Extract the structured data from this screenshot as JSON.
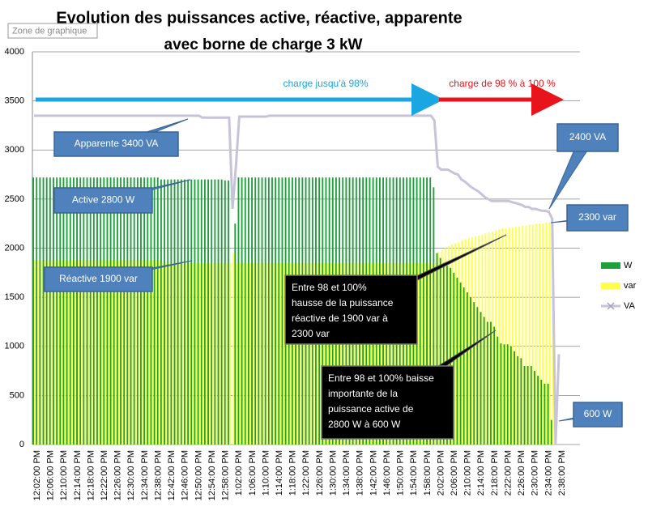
{
  "chart_data": {
    "type": "bar_line",
    "title": "Evolution des puissances active, réactive, apparente",
    "subtitle": "avec borne  de charge 3 kW",
    "tooltip": "Zone de graphique",
    "categories": [
      "12:02:00 PM",
      null,
      null,
      null,
      "12:06:00 PM",
      null,
      null,
      null,
      "12:10:00 PM",
      null,
      null,
      null,
      "12:14:00 PM",
      null,
      null,
      null,
      "12:18:00 PM",
      null,
      null,
      null,
      "12:22:00 PM",
      null,
      null,
      null,
      "12:26:00 PM",
      null,
      null,
      null,
      "12:30:00 PM",
      null,
      null,
      null,
      "12:34:00 PM",
      null,
      null,
      null,
      "12:38:00 PM",
      null,
      null,
      null,
      "12:42:00 PM",
      null,
      null,
      null,
      "12:46:00 PM",
      null,
      null,
      null,
      "12:50:00 PM",
      null,
      null,
      null,
      "12:54:00 PM",
      null,
      null,
      null,
      "12:58:00 PM",
      null,
      null,
      null,
      "1:02:00 PM",
      null,
      null,
      null,
      "1:06:00 PM",
      null,
      null,
      null,
      "1:10:00 PM",
      null,
      null,
      null,
      "1:14:00 PM",
      null,
      null,
      null,
      "1:18:00 PM",
      null,
      null,
      null,
      "1:22:00 PM",
      null,
      null,
      null,
      "1:26:00 PM",
      null,
      null,
      null,
      "1:30:00 PM",
      null,
      null,
      null,
      "1:34:00 PM",
      null,
      null,
      null,
      "1:38:00 PM",
      null,
      null,
      null,
      "1:42:00 PM",
      null,
      null,
      null,
      "1:46:00 PM",
      null,
      null,
      null,
      "1:50:00 PM",
      null,
      null,
      null,
      "1:54:00 PM",
      null,
      null,
      null,
      "1:58:00 PM",
      null,
      null,
      null,
      "2:02:00 PM",
      null,
      null,
      null,
      "2:06:00 PM",
      null,
      null,
      null,
      "2:10:00 PM",
      null,
      null,
      null,
      "2:14:00 PM",
      null,
      null,
      null,
      "2:18:00 PM",
      null,
      null,
      null,
      "2:22:00 PM",
      null,
      null,
      null,
      "2:26:00 PM",
      null,
      null,
      null,
      "2:30:00 PM",
      null,
      null,
      null,
      "2:34:00 PM",
      null,
      null,
      null,
      "2:38:00 PM"
    ],
    "series": [
      {
        "name": "W",
        "kind": "bar",
        "color": "#1f9e3c",
        "values": [
          2720,
          2720,
          2720,
          2720,
          2720,
          2720,
          2720,
          2720,
          2720,
          2720,
          2720,
          2720,
          2720,
          2720,
          2720,
          2720,
          2720,
          2720,
          2720,
          2720,
          2720,
          2720,
          2720,
          2720,
          2720,
          2720,
          2720,
          2720,
          2720,
          2720,
          2720,
          2720,
          2720,
          2720,
          2720,
          2720,
          2720,
          2720,
          2700,
          2700,
          2700,
          2700,
          2700,
          2700,
          2700,
          2700,
          2700,
          2700,
          2700,
          2700,
          2700,
          2700,
          2700,
          2700,
          2700,
          2700,
          2700,
          2690,
          2690,
          0,
          2250,
          2720,
          2720,
          2720,
          2720,
          2720,
          2720,
          2720,
          2720,
          2720,
          2720,
          2720,
          2720,
          2720,
          2720,
          2720,
          2720,
          2720,
          2720,
          2720,
          2720,
          2720,
          2720,
          2720,
          2720,
          2720,
          2720,
          2720,
          2720,
          2720,
          2720,
          2720,
          2720,
          2720,
          2720,
          2720,
          2720,
          2720,
          2720,
          2720,
          2720,
          2720,
          2720,
          2720,
          2720,
          2720,
          2720,
          2720,
          2720,
          2720,
          2720,
          2720,
          2720,
          2720,
          2720,
          2720,
          2720,
          2720,
          2720,
          2620,
          1950,
          1900,
          1850,
          1820,
          1800,
          1750,
          1700,
          1650,
          1600,
          1550,
          1500,
          1450,
          1400,
          1350,
          1300,
          1250,
          1250,
          1200,
          1100,
          1030,
          1020,
          1020,
          1000,
          950,
          900,
          880,
          800,
          800,
          800,
          750,
          700,
          660,
          620,
          620,
          250,
          0,
          0
        ]
      },
      {
        "name": "var",
        "kind": "bar",
        "color": "#ffff4a",
        "values": [
          1880,
          1880,
          1880,
          1880,
          1880,
          1880,
          1880,
          1880,
          1880,
          1880,
          1880,
          1880,
          1880,
          1880,
          1880,
          1880,
          1880,
          1880,
          1880,
          1880,
          1880,
          1880,
          1880,
          1880,
          1880,
          1880,
          1880,
          1880,
          1880,
          1880,
          1880,
          1880,
          1880,
          1880,
          1880,
          1880,
          1880,
          1880,
          1850,
          1850,
          1850,
          1850,
          1850,
          1850,
          1850,
          1850,
          1850,
          1850,
          1850,
          1850,
          1850,
          1850,
          1850,
          1850,
          1850,
          1850,
          1850,
          1850,
          1850,
          1950,
          1850,
          1850,
          1850,
          1850,
          1850,
          1850,
          1850,
          1850,
          1850,
          1850,
          1850,
          1850,
          1850,
          1850,
          1850,
          1850,
          1850,
          1850,
          1850,
          1850,
          1850,
          1850,
          1850,
          1850,
          1850,
          1850,
          1850,
          1850,
          1850,
          1850,
          1850,
          1850,
          1850,
          1850,
          1850,
          1850,
          1850,
          1850,
          1850,
          1850,
          1850,
          1850,
          1850,
          1850,
          1850,
          1850,
          1850,
          1850,
          1850,
          1850,
          1850,
          1850,
          1850,
          1850,
          1850,
          1850,
          1850,
          1850,
          1850,
          1850,
          1960,
          1980,
          2000,
          2020,
          2040,
          2050,
          2060,
          2080,
          2090,
          2100,
          2110,
          2120,
          2130,
          2140,
          2150,
          2160,
          2170,
          2180,
          2190,
          2200,
          2200,
          2210,
          2210,
          2220,
          2220,
          2230,
          2230,
          2240,
          2240,
          2250,
          2250,
          2250,
          2260,
          2260,
          2260,
          0,
          0
        ]
      },
      {
        "name": "VA",
        "kind": "line",
        "color": "#c9c3da",
        "values": [
          3350,
          3350,
          3350,
          3350,
          3350,
          3350,
          3350,
          3350,
          3350,
          3350,
          3350,
          3350,
          3350,
          3350,
          3350,
          3350,
          3350,
          3350,
          3350,
          3350,
          3350,
          3350,
          3350,
          3350,
          3350,
          3350,
          3350,
          3350,
          3350,
          3350,
          3350,
          3350,
          3350,
          3350,
          3350,
          3350,
          3350,
          3350,
          3350,
          3350,
          3350,
          3350,
          3350,
          3350,
          3350,
          3350,
          3350,
          3350,
          3350,
          3350,
          3330,
          3330,
          3330,
          3330,
          3330,
          3330,
          3330,
          3330,
          3330,
          2400,
          2830,
          3340,
          3340,
          3340,
          3340,
          3340,
          3340,
          3340,
          3340,
          3340,
          3350,
          3350,
          3350,
          3350,
          3350,
          3350,
          3350,
          3350,
          3350,
          3350,
          3350,
          3350,
          3350,
          3350,
          3350,
          3350,
          3350,
          3350,
          3350,
          3350,
          3350,
          3350,
          3350,
          3350,
          3350,
          3350,
          3350,
          3350,
          3350,
          3350,
          3350,
          3350,
          3350,
          3350,
          3350,
          3350,
          3350,
          3350,
          3350,
          3350,
          3350,
          3350,
          3350,
          3350,
          3350,
          3350,
          3350,
          3350,
          3350,
          3300,
          2830,
          2800,
          2800,
          2800,
          2780,
          2760,
          2750,
          2700,
          2680,
          2650,
          2620,
          2600,
          2580,
          2550,
          2520,
          2500,
          2480,
          2480,
          2480,
          2480,
          2480,
          2480,
          2470,
          2460,
          2450,
          2440,
          2420,
          2420,
          2400,
          2400,
          2390,
          2380,
          2380,
          2370,
          2300,
          0,
          920
        ]
      }
    ],
    "ylim": [
      0,
      4000
    ],
    "yticks": [
      0,
      500,
      1000,
      1500,
      2000,
      2500,
      3000,
      3500,
      4000
    ],
    "grid": true,
    "legend": "right",
    "arrows": [
      {
        "text": "charge jusqu'à 98%",
        "color": "#1aa6e0"
      },
      {
        "text": "charge de 98 % à 100  %",
        "color": "#e8141c"
      }
    ],
    "callouts": [
      {
        "lines": [
          "Apparente 3400 VA"
        ],
        "style": "blue"
      },
      {
        "lines": [
          "Active 2800 W"
        ],
        "style": "blue"
      },
      {
        "lines": [
          "Réactive 1900 var"
        ],
        "style": "blue"
      },
      {
        "lines": [
          "2400 VA"
        ],
        "style": "blue"
      },
      {
        "lines": [
          "2300 var"
        ],
        "style": "blue"
      },
      {
        "lines": [
          "600 W"
        ],
        "style": "blue"
      },
      {
        "lines": [
          "Entre 98  et 100%",
          "hausse de la puissance",
          "réactive de 1900  var à",
          "2300 var"
        ],
        "style": "black"
      },
      {
        "lines": [
          "Entre 98  et 100% baisse",
          "importante de la",
          "puissance active de",
          "2800 W à 600 W"
        ],
        "style": "black"
      }
    ]
  }
}
